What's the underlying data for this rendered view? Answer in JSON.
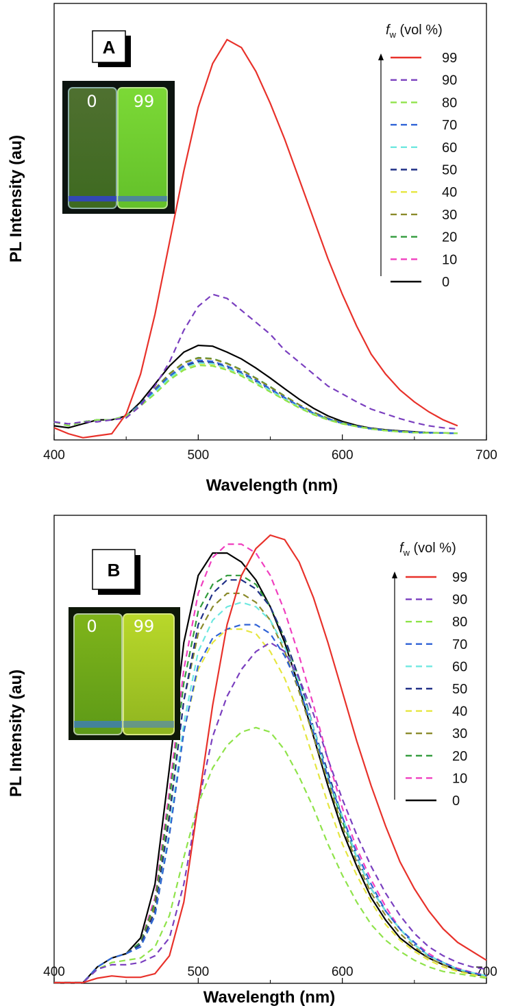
{
  "colors": {
    "99": "#e8312a",
    "90": "#7a3fbf",
    "80": "#8fe34a",
    "70": "#2f62d6",
    "60": "#6ee8e0",
    "50": "#1f2f86",
    "40": "#e6e640",
    "30": "#8a8a2a",
    "20": "#2f9a3a",
    "10": "#f03fbf",
    "0": "#000000"
  },
  "chart_data": [
    {
      "type": "line",
      "panel_label": "A",
      "xlabel": "Wavelength (nm)",
      "ylabel": "PL Intensity (au)",
      "xlim": [
        400,
        700
      ],
      "ylim": [
        0,
        1.0
      ],
      "x_ticks": [
        "400",
        "500",
        "600",
        "700"
      ],
      "legend": {
        "title_f": "f",
        "title_sub": "w",
        "title_rest": " (vol %)",
        "placement": "top-right"
      },
      "insets": {
        "vial_left": "0",
        "vial_right": "99"
      },
      "x": [
        400,
        410,
        420,
        430,
        440,
        450,
        460,
        470,
        480,
        490,
        500,
        510,
        520,
        530,
        540,
        550,
        560,
        570,
        580,
        590,
        600,
        610,
        620,
        630,
        640,
        650,
        660,
        670,
        680
      ],
      "series": [
        {
          "name": "99",
          "style": "solid",
          "values": [
            0.015,
            0.0,
            -0.01,
            -0.005,
            0.0,
            0.05,
            0.15,
            0.3,
            0.48,
            0.66,
            0.82,
            0.93,
            0.99,
            0.97,
            0.91,
            0.83,
            0.74,
            0.64,
            0.54,
            0.44,
            0.35,
            0.27,
            0.2,
            0.15,
            0.11,
            0.08,
            0.055,
            0.035,
            0.02
          ]
        },
        {
          "name": "90",
          "style": "dashed",
          "values": [
            0.03,
            0.025,
            0.03,
            0.03,
            0.035,
            0.04,
            0.07,
            0.12,
            0.18,
            0.26,
            0.32,
            0.35,
            0.34,
            0.31,
            0.28,
            0.25,
            0.21,
            0.18,
            0.15,
            0.12,
            0.1,
            0.08,
            0.062,
            0.05,
            0.038,
            0.028,
            0.02,
            0.015,
            0.012
          ]
        },
        {
          "name": "80",
          "style": "dashed",
          "values": [
            0.03,
            0.02,
            0.03,
            0.035,
            0.035,
            0.045,
            0.07,
            0.1,
            0.135,
            0.16,
            0.172,
            0.17,
            0.16,
            0.145,
            0.125,
            0.105,
            0.085,
            0.065,
            0.048,
            0.035,
            0.025,
            0.018,
            0.012,
            0.008,
            0.005,
            0.003,
            0.002,
            0.002,
            0.001
          ]
        },
        {
          "name": "70",
          "style": "dashed",
          "values": [
            0.03,
            0.02,
            0.03,
            0.035,
            0.035,
            0.045,
            0.075,
            0.11,
            0.145,
            0.172,
            0.185,
            0.182,
            0.17,
            0.155,
            0.135,
            0.113,
            0.091,
            0.07,
            0.052,
            0.038,
            0.027,
            0.019,
            0.013,
            0.009,
            0.006,
            0.004,
            0.003,
            0.002,
            0.001
          ]
        },
        {
          "name": "60",
          "style": "dashed",
          "values": [
            0.03,
            0.02,
            0.03,
            0.035,
            0.035,
            0.045,
            0.072,
            0.105,
            0.14,
            0.166,
            0.178,
            0.176,
            0.165,
            0.15,
            0.13,
            0.109,
            0.088,
            0.068,
            0.05,
            0.036,
            0.026,
            0.018,
            0.012,
            0.008,
            0.005,
            0.003,
            0.002,
            0.002,
            0.001
          ]
        },
        {
          "name": "50",
          "style": "dashed",
          "values": [
            0.03,
            0.02,
            0.03,
            0.035,
            0.035,
            0.045,
            0.074,
            0.108,
            0.143,
            0.169,
            0.181,
            0.179,
            0.167,
            0.152,
            0.132,
            0.111,
            0.089,
            0.069,
            0.051,
            0.037,
            0.026,
            0.018,
            0.012,
            0.008,
            0.005,
            0.003,
            0.002,
            0.002,
            0.001
          ]
        },
        {
          "name": "40",
          "style": "dashed",
          "values": [
            0.03,
            0.02,
            0.03,
            0.035,
            0.035,
            0.045,
            0.071,
            0.104,
            0.138,
            0.164,
            0.176,
            0.174,
            0.163,
            0.148,
            0.128,
            0.107,
            0.086,
            0.066,
            0.049,
            0.035,
            0.025,
            0.018,
            0.012,
            0.008,
            0.005,
            0.003,
            0.002,
            0.002,
            0.001
          ]
        },
        {
          "name": "30",
          "style": "dashed",
          "values": [
            0.03,
            0.02,
            0.03,
            0.035,
            0.035,
            0.045,
            0.075,
            0.112,
            0.15,
            0.178,
            0.19,
            0.188,
            0.176,
            0.16,
            0.139,
            0.117,
            0.094,
            0.073,
            0.054,
            0.039,
            0.028,
            0.019,
            0.013,
            0.009,
            0.006,
            0.004,
            0.003,
            0.002,
            0.001
          ]
        },
        {
          "name": "20",
          "style": "dashed",
          "values": [
            0.03,
            0.02,
            0.03,
            0.035,
            0.035,
            0.045,
            0.076,
            0.113,
            0.151,
            0.179,
            0.191,
            0.189,
            0.177,
            0.161,
            0.14,
            0.118,
            0.095,
            0.073,
            0.054,
            0.039,
            0.028,
            0.019,
            0.013,
            0.009,
            0.006,
            0.004,
            0.003,
            0.002,
            0.001
          ]
        },
        {
          "name": "10",
          "style": "dashed",
          "values": [
            0.03,
            0.02,
            0.03,
            0.035,
            0.035,
            0.045,
            0.073,
            0.107,
            0.142,
            0.168,
            0.18,
            0.178,
            0.166,
            0.151,
            0.131,
            0.11,
            0.088,
            0.068,
            0.05,
            0.036,
            0.026,
            0.018,
            0.012,
            0.008,
            0.005,
            0.003,
            0.002,
            0.002,
            0.001
          ]
        },
        {
          "name": "0",
          "style": "solid",
          "values": [
            0.02,
            0.015,
            0.025,
            0.035,
            0.035,
            0.045,
            0.08,
            0.125,
            0.17,
            0.205,
            0.222,
            0.22,
            0.205,
            0.188,
            0.165,
            0.14,
            0.113,
            0.087,
            0.064,
            0.045,
            0.031,
            0.021,
            0.014,
            0.01,
            0.007,
            0.005,
            0.003,
            0.002,
            0.001
          ]
        }
      ]
    },
    {
      "type": "line",
      "panel_label": "B",
      "xlabel": "Wavelength (nm)",
      "ylabel": "PL Intensity (au)",
      "xlim": [
        400,
        700
      ],
      "ylim": [
        0,
        1.0
      ],
      "x_ticks": [
        "400",
        "500",
        "600",
        "700"
      ],
      "legend": {
        "title_f": "f",
        "title_sub": "w",
        "title_rest": " (vol %)",
        "placement": "top-right"
      },
      "insets": {
        "vial_left": "0",
        "vial_right": "99"
      },
      "x": [
        400,
        410,
        420,
        430,
        440,
        450,
        460,
        470,
        480,
        490,
        500,
        510,
        520,
        530,
        540,
        550,
        560,
        570,
        580,
        590,
        600,
        610,
        620,
        630,
        640,
        650,
        660,
        670,
        680,
        690,
        700
      ],
      "series": [
        {
          "name": "99",
          "style": "solid",
          "values": [
            0.0,
            0.0,
            0.0,
            0.01,
            0.015,
            0.012,
            0.012,
            0.02,
            0.06,
            0.18,
            0.4,
            0.62,
            0.8,
            0.91,
            0.97,
            1.0,
            0.99,
            0.94,
            0.86,
            0.76,
            0.65,
            0.54,
            0.44,
            0.35,
            0.27,
            0.21,
            0.16,
            0.12,
            0.09,
            0.07,
            0.05
          ]
        },
        {
          "name": "90",
          "style": "dashed",
          "values": [
            0.0,
            0.0,
            0.0,
            0.03,
            0.04,
            0.04,
            0.045,
            0.06,
            0.1,
            0.22,
            0.4,
            0.55,
            0.64,
            0.7,
            0.74,
            0.76,
            0.74,
            0.68,
            0.6,
            0.5,
            0.41,
            0.33,
            0.26,
            0.2,
            0.15,
            0.11,
            0.08,
            0.06,
            0.045,
            0.035,
            0.03
          ]
        },
        {
          "name": "80",
          "style": "dashed",
          "values": [
            0.0,
            0.0,
            0.0,
            0.03,
            0.045,
            0.05,
            0.055,
            0.08,
            0.15,
            0.28,
            0.4,
            0.48,
            0.53,
            0.56,
            0.57,
            0.56,
            0.52,
            0.46,
            0.39,
            0.31,
            0.24,
            0.18,
            0.13,
            0.095,
            0.07,
            0.05,
            0.035,
            0.025,
            0.02,
            0.015,
            0.01
          ]
        },
        {
          "name": "70",
          "style": "dashed",
          "values": [
            0.0,
            0.0,
            0.0,
            0.035,
            0.055,
            0.065,
            0.08,
            0.15,
            0.33,
            0.56,
            0.71,
            0.77,
            0.79,
            0.8,
            0.8,
            0.78,
            0.73,
            0.66,
            0.56,
            0.46,
            0.37,
            0.29,
            0.22,
            0.16,
            0.12,
            0.09,
            0.06,
            0.045,
            0.03,
            0.022,
            0.015
          ]
        },
        {
          "name": "60",
          "style": "dashed",
          "values": [
            0.0,
            0.0,
            0.0,
            0.035,
            0.055,
            0.065,
            0.08,
            0.15,
            0.34,
            0.58,
            0.74,
            0.81,
            0.84,
            0.85,
            0.84,
            0.81,
            0.75,
            0.67,
            0.57,
            0.46,
            0.37,
            0.28,
            0.21,
            0.16,
            0.12,
            0.085,
            0.06,
            0.045,
            0.03,
            0.022,
            0.015
          ]
        },
        {
          "name": "50",
          "style": "dashed",
          "values": [
            0.0,
            0.0,
            0.0,
            0.035,
            0.055,
            0.065,
            0.085,
            0.16,
            0.37,
            0.63,
            0.8,
            0.87,
            0.9,
            0.9,
            0.88,
            0.84,
            0.77,
            0.68,
            0.57,
            0.47,
            0.37,
            0.28,
            0.21,
            0.16,
            0.12,
            0.085,
            0.06,
            0.045,
            0.03,
            0.022,
            0.015
          ]
        },
        {
          "name": "40",
          "style": "dashed",
          "values": [
            0.0,
            0.0,
            0.0,
            0.035,
            0.055,
            0.065,
            0.08,
            0.15,
            0.33,
            0.56,
            0.7,
            0.76,
            0.79,
            0.79,
            0.78,
            0.74,
            0.68,
            0.6,
            0.5,
            0.4,
            0.31,
            0.24,
            0.18,
            0.13,
            0.095,
            0.07,
            0.05,
            0.035,
            0.025,
            0.018,
            0.012
          ]
        },
        {
          "name": "30",
          "style": "dashed",
          "values": [
            0.0,
            0.0,
            0.0,
            0.035,
            0.055,
            0.065,
            0.085,
            0.17,
            0.38,
            0.63,
            0.78,
            0.84,
            0.87,
            0.87,
            0.85,
            0.81,
            0.74,
            0.65,
            0.55,
            0.45,
            0.35,
            0.27,
            0.2,
            0.15,
            0.11,
            0.08,
            0.055,
            0.04,
            0.028,
            0.02,
            0.014
          ]
        },
        {
          "name": "20",
          "style": "dashed",
          "values": [
            0.0,
            0.0,
            0.0,
            0.035,
            0.055,
            0.065,
            0.09,
            0.18,
            0.41,
            0.67,
            0.83,
            0.89,
            0.91,
            0.91,
            0.89,
            0.84,
            0.77,
            0.68,
            0.57,
            0.46,
            0.36,
            0.28,
            0.21,
            0.16,
            0.12,
            0.085,
            0.06,
            0.045,
            0.03,
            0.022,
            0.015
          ]
        },
        {
          "name": "10",
          "style": "dashed",
          "values": [
            0.0,
            0.0,
            0.0,
            0.035,
            0.055,
            0.065,
            0.09,
            0.19,
            0.43,
            0.7,
            0.87,
            0.95,
            0.98,
            0.98,
            0.96,
            0.91,
            0.83,
            0.73,
            0.62,
            0.5,
            0.39,
            0.3,
            0.23,
            0.17,
            0.12,
            0.09,
            0.065,
            0.045,
            0.032,
            0.023,
            0.016
          ]
        },
        {
          "name": "0",
          "style": "solid",
          "values": [
            0.0,
            0.0,
            0.0,
            0.035,
            0.055,
            0.065,
            0.1,
            0.22,
            0.48,
            0.76,
            0.91,
            0.96,
            0.96,
            0.94,
            0.9,
            0.84,
            0.76,
            0.66,
            0.55,
            0.44,
            0.34,
            0.26,
            0.19,
            0.14,
            0.1,
            0.075,
            0.055,
            0.04,
            0.028,
            0.02,
            0.014
          ]
        }
      ]
    }
  ]
}
